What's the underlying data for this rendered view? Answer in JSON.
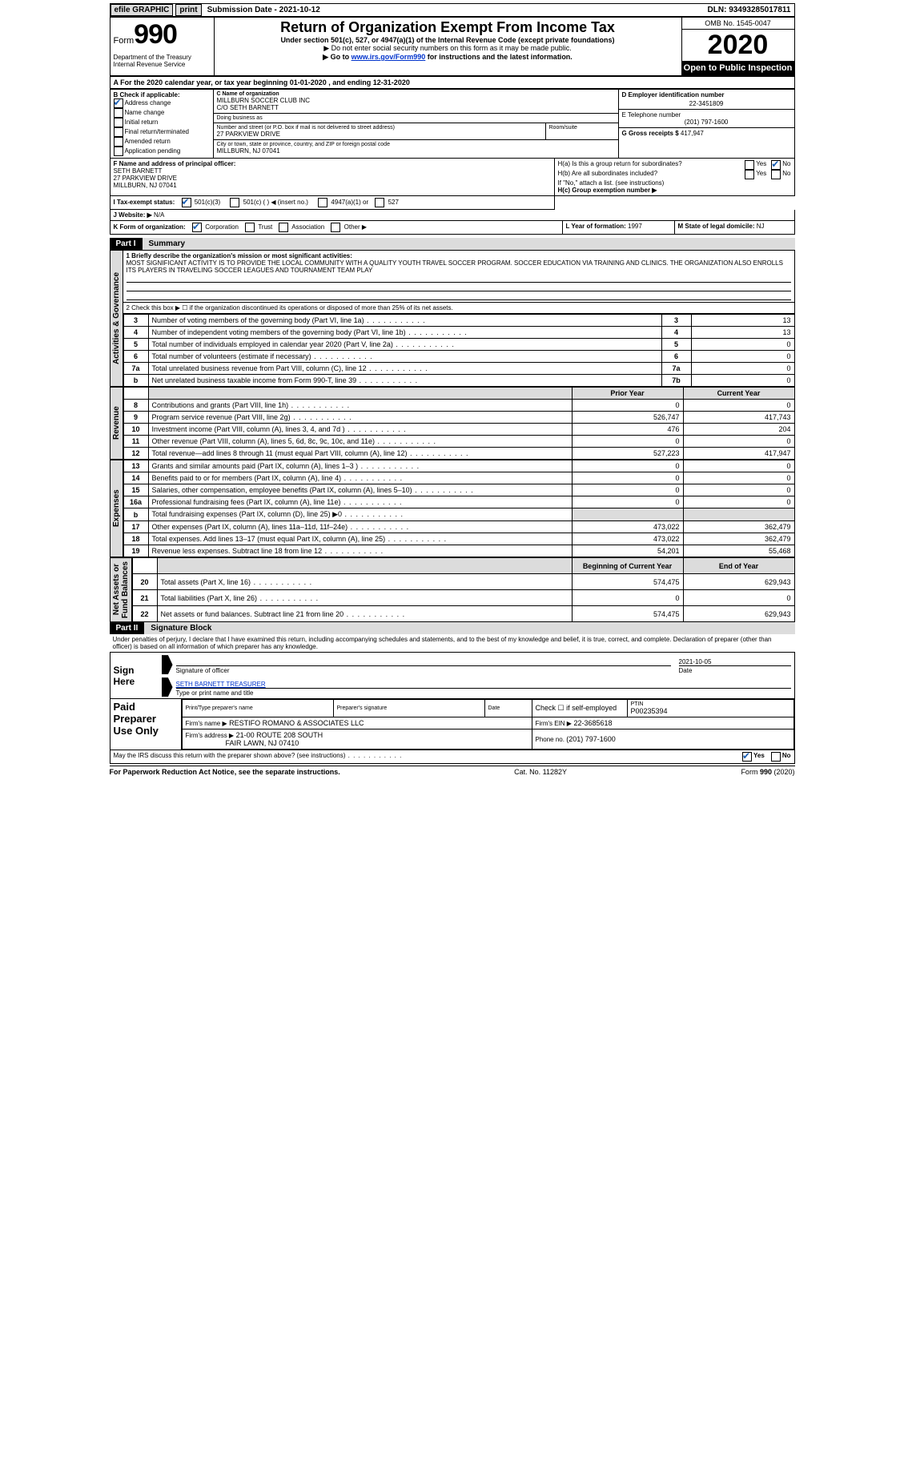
{
  "topbar": {
    "efile": "efile GRAPHIC",
    "print": "print",
    "submission_label": "Submission Date - ",
    "submission_date": "2021-10-12",
    "dln_label": "DLN: ",
    "dln": "93493285017811"
  },
  "header": {
    "form_label": "Form",
    "form_no": "990",
    "dept": "Department of the Treasury\nInternal Revenue Service",
    "title": "Return of Organization Exempt From Income Tax",
    "sub1": "Under section 501(c), 527, or 4947(a)(1) of the Internal Revenue Code (except private foundations)",
    "sub2": "▶ Do not enter social security numbers on this form as it may be made public.",
    "sub3_pre": "▶ Go to ",
    "sub3_link": "www.irs.gov/Form990",
    "sub3_post": " for instructions and the latest information.",
    "omb": "OMB No. 1545-0047",
    "year": "2020",
    "open": "Open to Public Inspection"
  },
  "A": {
    "text": "For the 2020 calendar year, or tax year beginning 01-01-2020    , and ending 12-31-2020"
  },
  "B": {
    "label": "B Check if applicable:",
    "opts": [
      {
        "ck": true,
        "t": "Address change"
      },
      {
        "ck": false,
        "t": "Name change"
      },
      {
        "ck": false,
        "t": "Initial return"
      },
      {
        "ck": false,
        "t": "Final return/terminated"
      },
      {
        "ck": false,
        "t": "Amended return"
      },
      {
        "ck": false,
        "t": "Application pending"
      }
    ]
  },
  "C": {
    "label": "C Name of organization",
    "name": "MILLBURN SOCCER CLUB INC",
    "co": "C/O SETH BARNETT",
    "dba_label": "Doing business as",
    "dba": "",
    "street_label": "Number and street (or P.O. box if mail is not delivered to street address)",
    "room_label": "Room/suite",
    "street": "27 PARKVIEW DRIVE",
    "room": "",
    "city_label": "City or town, state or province, country, and ZIP or foreign postal code",
    "city": "MILLBURN, NJ  07041"
  },
  "D": {
    "label": "D Employer identification number",
    "val": "22-3451809"
  },
  "E": {
    "label": "E Telephone number",
    "val": "(201) 797-1600"
  },
  "G": {
    "label": "G Gross receipts $",
    "val": "417,947"
  },
  "F": {
    "label": "F  Name and address of principal officer:",
    "name": "SETH BARNETT",
    "l1": "27 PARKVIEW DRIVE",
    "l2": "MILLBURN, NJ  07041"
  },
  "H": {
    "a_label": "H(a)  Is this a group return for subordinates?",
    "a_yes": false,
    "a_no": true,
    "b_label": "H(b)  Are all subordinates included?",
    "b_yes": false,
    "b_no": false,
    "b_note": "If \"No,\" attach a list. (see instructions)",
    "c_label": "H(c)  Group exemption number ▶",
    "c_val": ""
  },
  "I": {
    "label": "I   Tax-exempt status:",
    "c3": true,
    "c_blank": false,
    "insert": "◀ (insert no.)",
    "a4947": false,
    "c527": false,
    "c3t": "501(c)(3)",
    "ct": "501(c) (  )",
    "a4947t": "4947(a)(1) or",
    "c527t": "527"
  },
  "J": {
    "label": "J   Website: ▶",
    "val": "N/A"
  },
  "K": {
    "label": "K Form of organization:",
    "corp": true,
    "trust": false,
    "assoc": false,
    "other": false,
    "corpt": "Corporation",
    "trustt": "Trust",
    "assoct": "Association",
    "othert": "Other ▶"
  },
  "L": {
    "label": "L Year of formation: ",
    "val": "1997"
  },
  "M": {
    "label": "M State of legal domicile: ",
    "val": "NJ"
  },
  "part1": {
    "tab": "Part I",
    "title": "Summary",
    "l1_label": "1   Briefly describe the organization's mission or most significant activities:",
    "l1_text": "MOST SIGNIFICANT ACTIVITY IS TO PROVIDE THE LOCAL COMMUNITY WITH A QUALITY YOUTH TRAVEL SOCCER PROGRAM. SOCCER EDUCATION VIA TRAINING AND CLINICS. THE ORGANIZATION ALSO ENROLLS ITS PLAYERS IN TRAVELING SOCCER LEAGUES AND TOURNAMENT TEAM PLAY",
    "l2": "2   Check this box ▶ ☐  if the organization discontinued its operations or disposed of more than 25% of its net assets.",
    "gov": [
      {
        "n": "3",
        "d": "Number of voting members of the governing body (Part VI, line 1a)",
        "r": "3",
        "v": "13"
      },
      {
        "n": "4",
        "d": "Number of independent voting members of the governing body (Part VI, line 1b)",
        "r": "4",
        "v": "13"
      },
      {
        "n": "5",
        "d": "Total number of individuals employed in calendar year 2020 (Part V, line 2a)",
        "r": "5",
        "v": "0"
      },
      {
        "n": "6",
        "d": "Total number of volunteers (estimate if necessary)",
        "r": "6",
        "v": "0"
      },
      {
        "n": "7a",
        "d": "Total unrelated business revenue from Part VIII, column (C), line 12",
        "r": "7a",
        "v": "0"
      },
      {
        "n": "b",
        "d": "Net unrelated business taxable income from Form 990-T, line 39",
        "r": "7b",
        "v": "0"
      }
    ],
    "head_prior": "Prior Year",
    "head_curr": "Current Year",
    "rev": [
      {
        "n": "8",
        "d": "Contributions and grants (Part VIII, line 1h)",
        "p": "0",
        "c": "0"
      },
      {
        "n": "9",
        "d": "Program service revenue (Part VIII, line 2g)",
        "p": "526,747",
        "c": "417,743"
      },
      {
        "n": "10",
        "d": "Investment income (Part VIII, column (A), lines 3, 4, and 7d )",
        "p": "476",
        "c": "204"
      },
      {
        "n": "11",
        "d": "Other revenue (Part VIII, column (A), lines 5, 6d, 8c, 9c, 10c, and 11e)",
        "p": "0",
        "c": "0"
      },
      {
        "n": "12",
        "d": "Total revenue—add lines 8 through 11 (must equal Part VIII, column (A), line 12)",
        "p": "527,223",
        "c": "417,947"
      }
    ],
    "exp": [
      {
        "n": "13",
        "d": "Grants and similar amounts paid (Part IX, column (A), lines 1–3 )",
        "p": "0",
        "c": "0"
      },
      {
        "n": "14",
        "d": "Benefits paid to or for members (Part IX, column (A), line 4)",
        "p": "0",
        "c": "0"
      },
      {
        "n": "15",
        "d": "Salaries, other compensation, employee benefits (Part IX, column (A), lines 5–10)",
        "p": "0",
        "c": "0"
      },
      {
        "n": "16a",
        "d": "Professional fundraising fees (Part IX, column (A), line 11e)",
        "p": "0",
        "c": "0"
      },
      {
        "n": "b",
        "d": "Total fundraising expenses (Part IX, column (D), line 25) ▶0",
        "p": "",
        "c": "",
        "shade": true
      },
      {
        "n": "17",
        "d": "Other expenses (Part IX, column (A), lines 11a–11d, 11f–24e)",
        "p": "473,022",
        "c": "362,479"
      },
      {
        "n": "18",
        "d": "Total expenses. Add lines 13–17 (must equal Part IX, column (A), line 25)",
        "p": "473,022",
        "c": "362,479"
      },
      {
        "n": "19",
        "d": "Revenue less expenses. Subtract line 18 from line 12",
        "p": "54,201",
        "c": "55,468"
      }
    ],
    "head_bcy": "Beginning of Current Year",
    "head_eoy": "End of Year",
    "na": [
      {
        "n": "20",
        "d": "Total assets (Part X, line 16)",
        "p": "574,475",
        "c": "629,943"
      },
      {
        "n": "21",
        "d": "Total liabilities (Part X, line 26)",
        "p": "0",
        "c": "0"
      },
      {
        "n": "22",
        "d": "Net assets or fund balances. Subtract line 21 from line 20",
        "p": "574,475",
        "c": "629,943"
      }
    ],
    "side_gov": "Activities & Governance",
    "side_rev": "Revenue",
    "side_exp": "Expenses",
    "side_na": "Net Assets or\nFund Balances"
  },
  "part2": {
    "tab": "Part II",
    "title": "Signature Block",
    "perjury": "Under penalties of perjury, I declare that I have examined this return, including accompanying schedules and statements, and to the best of my knowledge and belief, it is true, correct, and complete. Declaration of preparer (other than officer) is based on all information of which preparer has any knowledge.",
    "sign_here": "Sign Here",
    "sig_l1": "Signature of officer",
    "sig_date_l": "Date",
    "sig_date": "2021-10-05",
    "sig_name": "SETH BARNETT TREASURER",
    "sig_l2": "Type or print name and title",
    "paid": "Paid Preparer Use Only",
    "pp_name_l": "Print/Type preparer's name",
    "pp_name": "",
    "pp_sig_l": "Preparer's signature",
    "pp_date_l": "Date",
    "pp_ck": "Check ☐ if self-employed",
    "ptin_l": "PTIN",
    "ptin": "P00235394",
    "firm_l": "Firm's name    ▶",
    "firm": "RESTIFO ROMANO & ASSOCIATES LLC",
    "ein_l": "Firm's EIN ▶",
    "ein": "22-3685618",
    "addr_l": "Firm's address ▶",
    "addr1": "21-00 ROUTE 208 SOUTH",
    "addr2": "FAIR LAWN, NJ  07410",
    "phone_l": "Phone no. ",
    "phone": "(201) 797-1600",
    "discuss": "May the IRS discuss this return with the preparer shown above? (see instructions)",
    "dy": true,
    "dn": false,
    "dy_t": "Yes",
    "dn_t": "No"
  },
  "footer": {
    "l": "For Paperwork Reduction Act Notice, see the separate instructions.",
    "m": "Cat. No. 11282Y",
    "r": "Form 990 (2020)"
  }
}
